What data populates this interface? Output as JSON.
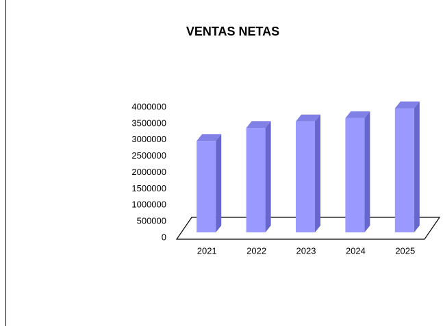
{
  "chart_data": {
    "type": "bar3d",
    "title": "VENTAS NETAS",
    "categories": [
      "2021",
      "2022",
      "2023",
      "2024",
      "2025"
    ],
    "values": [
      2800000,
      3200000,
      3400000,
      3500000,
      3800000
    ],
    "color": "#9999ff",
    "side_color": "#6666cc",
    "top_color": "#8080e6",
    "ylim": [
      0,
      4000000
    ],
    "yticks": [
      0,
      500000,
      1000000,
      1500000,
      2000000,
      2500000,
      3000000,
      3500000,
      4000000
    ]
  }
}
